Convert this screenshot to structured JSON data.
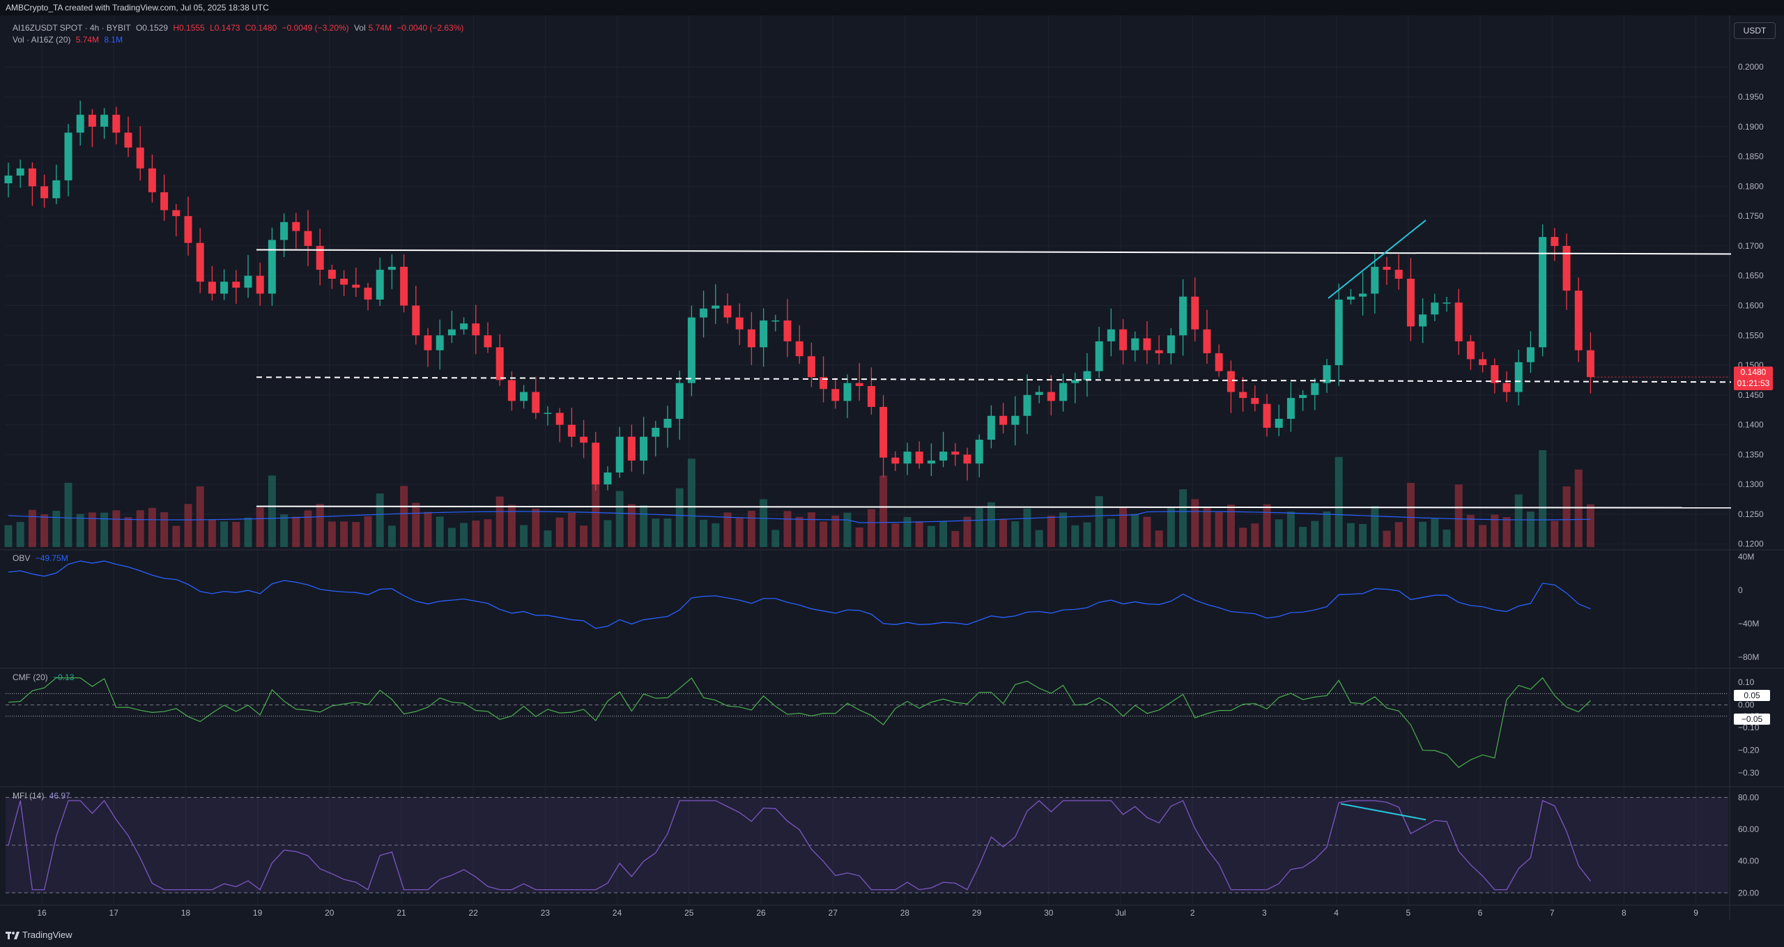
{
  "header": {
    "title": "AMBCrypto_TA created with TradingView.com, Jul 05, 2025 18:38 UTC"
  },
  "legend": {
    "symbol": "AI16ZUSDT SPOT · 4h · BYBIT",
    "open": "O0.1529",
    "high": "H0.1555",
    "low": "L0.1473",
    "close": "C0.1480",
    "change": "−0.0049 (−3.20%)",
    "vol_label": "Vol",
    "vol_value": "5.74M",
    "vol_change": "−0.0040 (−2.63%)",
    "vol_ma_label": "Vol · AI16Z (20)",
    "vol_ma_a": "5.74M",
    "vol_ma_b": "8.1M"
  },
  "currency_button": "USDT",
  "price_tag": {
    "price": "0.1480",
    "countdown": "01:21:53"
  },
  "indicators": {
    "obv": {
      "label": "OBV",
      "value": "−49.75M"
    },
    "cmf": {
      "label": "CMF (20)",
      "value": "−0.13",
      "tag_upper": "0.05",
      "tag_lower": "−0.05"
    },
    "mfi": {
      "label": "MFI (14)",
      "value": "46.97"
    }
  },
  "brand": "TradingView",
  "colors": {
    "up": "#22ab94",
    "down": "#f23645",
    "obv": "#2962ff",
    "cmf": "#4caf50",
    "mfi": "#7e57c2",
    "trend": "#26c6da"
  },
  "chart_data": {
    "type": "candlestick",
    "timeframe": "4h",
    "x_ticks": [
      "16",
      "17",
      "18",
      "19",
      "20",
      "21",
      "22",
      "23",
      "24",
      "25",
      "26",
      "27",
      "28",
      "29",
      "30",
      "Jul",
      "2",
      "3",
      "4",
      "5",
      "6",
      "7",
      "8",
      "9"
    ],
    "price_axis": {
      "ylim": [
        0.1195,
        0.204
      ],
      "ticks": [
        "0.2000",
        "0.1950",
        "0.1900",
        "0.1850",
        "0.1800",
        "0.1750",
        "0.1700",
        "0.1650",
        "0.1600",
        "0.1550",
        "0.1500",
        "0.1450",
        "0.1400",
        "0.1350",
        "0.1300",
        "0.1250",
        "0.1200"
      ]
    },
    "closes": [
      0.1818,
      0.183,
      0.18,
      0.178,
      0.181,
      0.189,
      0.192,
      0.19,
      0.192,
      0.189,
      0.1865,
      0.183,
      0.179,
      0.176,
      0.175,
      0.1705,
      0.164,
      0.162,
      0.164,
      0.163,
      0.165,
      0.162,
      0.171,
      0.174,
      0.1725,
      0.17,
      0.166,
      0.1645,
      0.1635,
      0.163,
      0.161,
      0.166,
      0.1665,
      0.16,
      0.155,
      0.1525,
      0.155,
      0.156,
      0.157,
      0.155,
      0.153,
      0.1475,
      0.144,
      0.1455,
      0.142,
      0.142,
      0.14,
      0.138,
      0.137,
      0.13,
      0.132,
      0.138,
      0.134,
      0.138,
      0.1395,
      0.141,
      0.147,
      0.158,
      0.1595,
      0.16,
      0.158,
      0.156,
      0.153,
      0.1575,
      0.1575,
      0.154,
      0.1515,
      0.148,
      0.146,
      0.144,
      0.147,
      0.1465,
      0.143,
      0.1345,
      0.1335,
      0.1355,
      0.1335,
      0.134,
      0.1355,
      0.135,
      0.1335,
      0.1375,
      0.1415,
      0.14,
      0.1415,
      0.145,
      0.1455,
      0.144,
      0.147,
      0.1475,
      0.149,
      0.154,
      0.156,
      0.1525,
      0.1545,
      0.1525,
      0.152,
      0.155,
      0.1615,
      0.156,
      0.152,
      0.149,
      0.1455,
      0.1445,
      0.1435,
      0.1395,
      0.141,
      0.1445,
      0.145,
      0.147,
      0.15,
      0.161,
      0.1615,
      0.162,
      0.1665,
      0.166,
      0.1645,
      0.1565,
      0.1585,
      0.1605,
      0.1605,
      0.154,
      0.151,
      0.15,
      0.147,
      0.1455,
      0.1505,
      0.153,
      0.1715,
      0.17,
      0.1625,
      0.1525,
      0.148
    ],
    "overlays": {
      "resistance": 0.169,
      "support": 0.1262,
      "mid_dashed": 0.1474,
      "last_price_dashed": 0.148
    },
    "volume": {
      "ma_value": "8.1M",
      "last": "5.74M"
    },
    "obv": {
      "ylim": [
        -90,
        45
      ],
      "ticks": [
        "40M",
        "0",
        "−40M",
        "−80M"
      ]
    },
    "cmf": {
      "ylim": [
        -0.35,
        0.15
      ],
      "ticks": [
        "0.10",
        "0.05",
        "0.00",
        "−0.05",
        "−0.10",
        "−0.20",
        "−0.30"
      ],
      "levels": [
        0.05,
        0.0,
        -0.05
      ]
    },
    "mfi": {
      "ylim": [
        14,
        85
      ],
      "ticks": [
        "80.00",
        "60.00",
        "40.00",
        "20.00"
      ],
      "band": [
        20,
        80
      ],
      "mid": 50
    }
  }
}
